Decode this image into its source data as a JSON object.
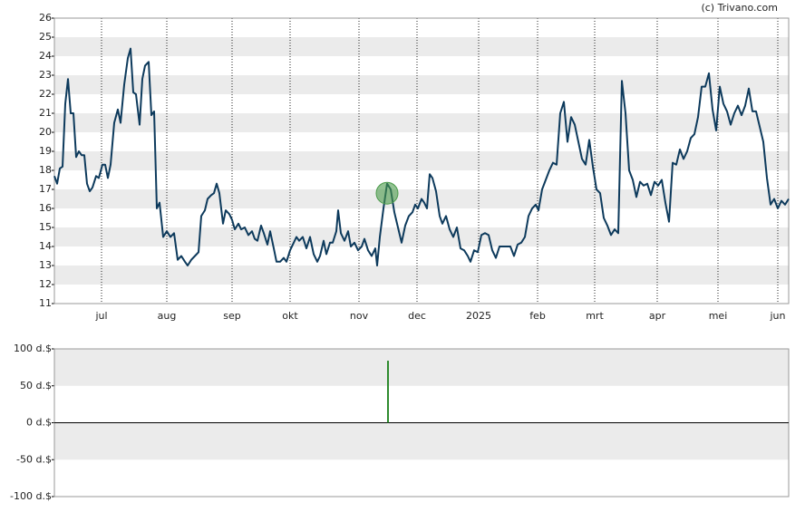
{
  "copyright": "(c) Trivano.com",
  "chart_data": [
    {
      "type": "line",
      "color": "#0d3a5c",
      "band_color": "#ebebeb",
      "x": [
        0,
        3,
        6,
        9,
        12,
        15,
        18,
        21,
        24,
        27,
        30,
        33,
        36,
        39,
        42,
        46,
        49,
        53,
        56,
        59,
        62,
        66,
        70,
        73,
        77,
        81,
        84,
        87,
        90,
        94,
        97,
        100,
        104,
        107,
        110,
        113,
        116,
        120,
        124,
        128,
        132,
        136,
        140,
        144,
        147,
        151,
        155,
        159,
        162,
        166,
        169,
        173,
        176,
        179,
        182,
        186,
        189,
        193,
        196,
        199,
        203,
        206,
        210,
        214,
        218,
        221,
        224,
        228,
        231,
        235,
        238,
        242,
        245,
        249,
        253,
        256,
        260,
        263,
        267,
        270,
        274,
        278,
        282,
        286,
        290,
        293,
        297,
        300,
        304,
        307,
        311,
        313,
        316,
        320,
        324,
        327,
        331,
        335,
        339,
        342,
        346,
        350,
        354,
        356,
        359,
        363,
        367,
        371,
        375,
        379,
        383,
        387,
        391,
        395,
        398,
        401,
        405,
        408,
        411,
        414,
        417,
        421,
        425,
        428,
        432,
        436,
        440,
        444,
        448,
        452,
        456,
        459,
        463,
        467,
        471,
        475,
        479,
        483,
        487,
        491,
        495,
        499,
        503,
        507,
        511,
        515,
        519,
        523,
        527,
        531,
        534,
        538,
        542,
        546,
        550,
        554,
        558,
        562,
        566,
        570,
        574,
        578,
        582,
        586,
        590,
        594,
        598,
        602,
        606,
        610,
        614,
        618,
        622,
        626,
        630,
        634,
        638,
        642,
        646,
        650,
        654,
        658,
        662,
        666,
        670,
        674,
        678,
        682,
        686,
        690,
        694,
        698,
        702,
        706,
        710,
        714,
        718,
        722,
        726,
        730,
        734,
        738,
        742,
        746,
        750,
        754,
        758,
        762,
        766,
        770,
        774,
        778,
        782,
        786,
        790,
        794,
        798,
        802,
        806,
        810
      ],
      "values": [
        17.7,
        17.3,
        18.1,
        18.2,
        21.5,
        22.8,
        21,
        21,
        18.7,
        19,
        18.8,
        18.8,
        17.3,
        16.9,
        17.1,
        17.7,
        17.6,
        18.3,
        18.3,
        17.6,
        18.3,
        20.5,
        21.2,
        20.5,
        22.5,
        23.9,
        24.4,
        22.1,
        22,
        20.4,
        22.8,
        23.5,
        23.7,
        20.9,
        21.1,
        16,
        16.3,
        14.5,
        14.8,
        14.5,
        14.7,
        13.3,
        13.5,
        13.2,
        13,
        13.3,
        13.5,
        13.7,
        15.6,
        15.9,
        16.5,
        16.7,
        16.8,
        17.3,
        16.8,
        15.2,
        15.9,
        15.7,
        15.4,
        14.9,
        15.2,
        14.9,
        15,
        14.6,
        14.8,
        14.4,
        14.3,
        15.1,
        14.7,
        14.1,
        14.8,
        13.9,
        13.2,
        13.2,
        13.4,
        13.2,
        13.8,
        14.1,
        14.5,
        14.3,
        14.5,
        13.9,
        14.5,
        13.6,
        13.2,
        13.5,
        14.3,
        13.6,
        14.2,
        14.2,
        14.8,
        15.9,
        14.7,
        14.3,
        14.8,
        14,
        14.2,
        13.8,
        14,
        14.4,
        13.8,
        13.5,
        13.9,
        13,
        14.5,
        16,
        17.3,
        17,
        15.8,
        15,
        14.2,
        15.1,
        15.6,
        15.8,
        16.2,
        16,
        16.5,
        16.3,
        16,
        17.8,
        17.6,
        16.9,
        15.6,
        15.2,
        15.6,
        14.9,
        14.5,
        15,
        13.9,
        13.8,
        13.5,
        13.2,
        13.8,
        13.7,
        14.6,
        14.7,
        14.6,
        13.8,
        13.4,
        14,
        14,
        14,
        14,
        13.5,
        14.1,
        14.2,
        14.5,
        15.6,
        16,
        16.2,
        15.9,
        17,
        17.5,
        18,
        18.4,
        18.3,
        21,
        21.6,
        19.5,
        20.8,
        20.4,
        19.5,
        18.6,
        18.3,
        19.6,
        18.2,
        17,
        16.8,
        15.5,
        15.1,
        14.6,
        14.9,
        14.7,
        22.7,
        21,
        18,
        17.5,
        16.6,
        17.4,
        17.2,
        17.3,
        16.7,
        17.4,
        17.2,
        17.5,
        16.3,
        15.3,
        18.4,
        18.3,
        19.1,
        18.6,
        19,
        19.7,
        19.9,
        20.8,
        22.4,
        22.4,
        23.1,
        21.2,
        20.1,
        22.4,
        21.5,
        21.1,
        20.4,
        21,
        21.4,
        20.9,
        21.4,
        22.3,
        21.1,
        21.1,
        20.3,
        19.5,
        17.6,
        16.2,
        16.5,
        16,
        16.4,
        16.2,
        16.5
      ],
      "signal": {
        "x": 367,
        "y": 16.8,
        "color": "#4a9a4a"
      },
      "xlim": [
        0,
        810
      ],
      "xticks": [
        {
          "value": 52,
          "label": "jul"
        },
        {
          "value": 124,
          "label": "aug"
        },
        {
          "value": 196,
          "label": "sep"
        },
        {
          "value": 260,
          "label": "okt"
        },
        {
          "value": 336,
          "label": "nov"
        },
        {
          "value": 400,
          "label": "dec"
        },
        {
          "value": 468,
          "label": "2025"
        },
        {
          "value": 533,
          "label": "feb"
        },
        {
          "value": 596,
          "label": "mrt"
        },
        {
          "value": 665,
          "label": "apr"
        },
        {
          "value": 732,
          "label": "mei"
        },
        {
          "value": 798,
          "label": "jun"
        }
      ],
      "ylim": [
        11,
        26
      ],
      "yticks": [
        11,
        12,
        13,
        14,
        15,
        16,
        17,
        18,
        19,
        20,
        21,
        22,
        23,
        24,
        25,
        26
      ]
    },
    {
      "type": "bar",
      "color": "#2e8b2e",
      "band_color": "#ebebeb",
      "x": [
        368
      ],
      "values": [
        84
      ],
      "xlim": [
        0,
        810
      ],
      "ylim": [
        -100,
        100
      ],
      "yticks": [
        {
          "value": -100,
          "label": "-100 d.$"
        },
        {
          "value": -50,
          "label": "-50 d.$"
        },
        {
          "value": 0,
          "label": "0 d.$"
        },
        {
          "value": 50,
          "label": "50 d.$"
        },
        {
          "value": 100,
          "label": "100 d.$"
        }
      ]
    }
  ]
}
